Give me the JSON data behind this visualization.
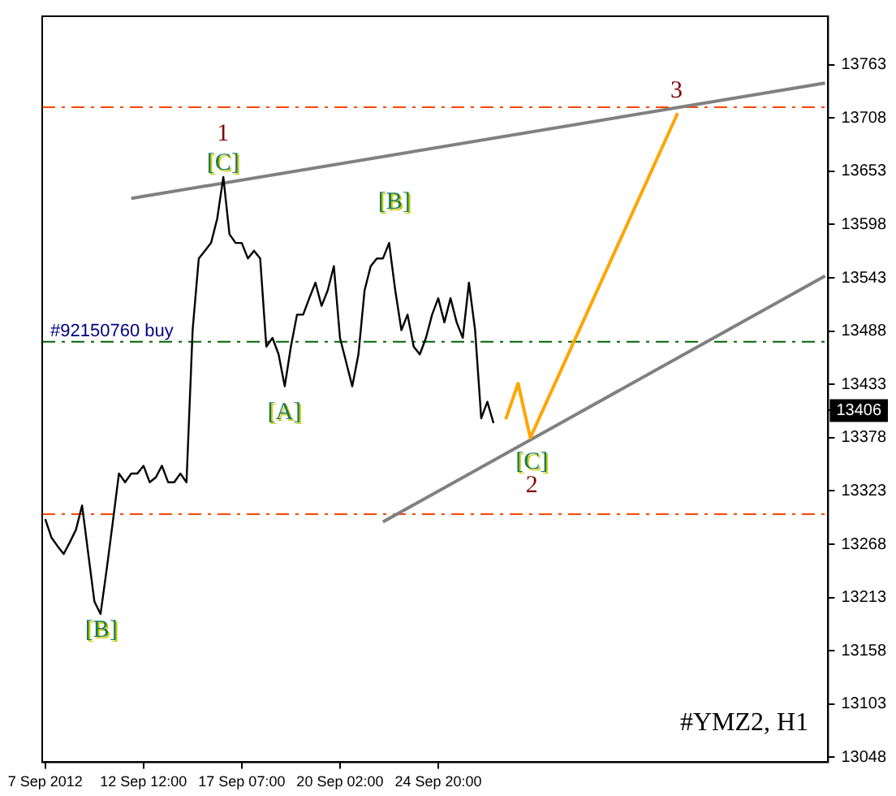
{
  "chart_data": {
    "type": "line",
    "categories": [
      "7 Sep 2012",
      null,
      null,
      null,
      null,
      null,
      null,
      null,
      null,
      null,
      null,
      null,
      null,
      null,
      null,
      null,
      "12 Sep 12:00",
      null,
      null,
      null,
      null,
      null,
      null,
      null,
      null,
      null,
      null,
      null,
      null,
      null,
      null,
      null,
      "17 Sep 07:00",
      null,
      null,
      null,
      null,
      null,
      null,
      null,
      null,
      null,
      null,
      null,
      null,
      null,
      null,
      null,
      "20 Sep 02:00",
      null,
      null,
      null,
      null,
      null,
      null,
      null,
      null,
      null,
      null,
      null,
      null,
      null,
      null,
      null,
      "24 Sep 20:00",
      null,
      null,
      null,
      null,
      null,
      null,
      null,
      null,
      null,
      null,
      null,
      null,
      null,
      null,
      null,
      null,
      null,
      null,
      null,
      null,
      null,
      null,
      null,
      null,
      null,
      null,
      null,
      null,
      null,
      null,
      null,
      null,
      null,
      null,
      null,
      null,
      null,
      null,
      null,
      null,
      null,
      null,
      null,
      null,
      null,
      null,
      null,
      null,
      null,
      null,
      null,
      null,
      null,
      null,
      null,
      null,
      null,
      null,
      null,
      null,
      null,
      null,
      null
    ],
    "ylim": [
      13043,
      13813
    ],
    "yticks": [
      13048,
      13103,
      13158,
      13213,
      13268,
      13323,
      13378,
      13433,
      13488,
      13543,
      13598,
      13653,
      13708,
      13763,
      13406
    ],
    "grid": false,
    "legend": false,
    "marker": "none",
    "series": [
      {
        "type": "line",
        "color": "#000000",
        "values": [
          13294,
          13275,
          13266,
          13258,
          13270,
          13283,
          13308,
          13258,
          13209,
          13196,
          13242,
          13291,
          13341,
          13332,
          13341,
          13341,
          13349,
          13332,
          13337,
          13349,
          13332,
          13332,
          13341,
          13332,
          13489,
          13563,
          13571,
          13579,
          13604,
          13647,
          13588,
          13579,
          13579,
          13563,
          13571,
          13563,
          13472,
          13481,
          13464,
          13431,
          13472,
          13505,
          13505,
          13522,
          13538,
          13514,
          13530,
          13555,
          13481,
          13456,
          13431,
          13464,
          13530,
          13555,
          13563,
          13563,
          13579,
          13530,
          13489,
          13505,
          13472,
          13464,
          13481,
          13505,
          13522,
          13497,
          13522,
          13497,
          13481,
          13538,
          13489,
          13398,
          13415,
          13393,
          null,
          null,
          null,
          null,
          null,
          null,
          null,
          null,
          null,
          null,
          null,
          null,
          null,
          null,
          null,
          null,
          null,
          null,
          null,
          null,
          null,
          null,
          null,
          null,
          null,
          null,
          null,
          null,
          null,
          null,
          null,
          null,
          null,
          null,
          null,
          null,
          null,
          null,
          null,
          null,
          null,
          null,
          null,
          null,
          null,
          null,
          null,
          null,
          null,
          null,
          null,
          null,
          null,
          null
        ]
      },
      {
        "type": "line",
        "color": "#ffa500",
        "values": [
          null,
          null,
          null,
          null,
          null,
          null,
          null,
          null,
          null,
          null,
          null,
          null,
          null,
          null,
          null,
          null,
          null,
          null,
          null,
          null,
          null,
          null,
          null,
          null,
          null,
          null,
          null,
          null,
          null,
          null,
          null,
          null,
          null,
          null,
          null,
          null,
          null,
          null,
          null,
          null,
          null,
          null,
          null,
          null,
          null,
          null,
          null,
          null,
          null,
          null,
          null,
          null,
          null,
          null,
          null,
          null,
          null,
          null,
          null,
          null,
          null,
          null,
          null,
          null,
          null,
          null,
          null,
          null,
          null,
          null,
          null,
          null,
          null,
          null,
          null,
          13397,
          null,
          13434,
          null,
          13378,
          null,
          null,
          null,
          null,
          null,
          null,
          null,
          null,
          null,
          null,
          null,
          null,
          null,
          null,
          null,
          null,
          null,
          null,
          null,
          null,
          null,
          null,
          null,
          13713,
          null,
          null,
          null,
          null,
          null,
          null,
          null,
          null,
          null,
          null,
          null,
          null,
          null,
          null,
          null,
          null,
          null,
          null,
          null,
          null,
          null,
          null,
          null,
          null
        ]
      },
      {
        "type": "line",
        "color": "#808080",
        "values": [
          null,
          null,
          null,
          null,
          null,
          null,
          null,
          null,
          null,
          null,
          null,
          null,
          null,
          null,
          13625,
          null,
          null,
          null,
          null,
          null,
          null,
          null,
          null,
          null,
          null,
          null,
          null,
          null,
          null,
          null,
          null,
          null,
          null,
          null,
          null,
          null,
          null,
          null,
          null,
          null,
          null,
          null,
          null,
          null,
          null,
          null,
          null,
          null,
          null,
          null,
          null,
          null,
          null,
          null,
          null,
          null,
          null,
          null,
          null,
          null,
          null,
          null,
          null,
          null,
          null,
          null,
          null,
          null,
          null,
          null,
          null,
          null,
          null,
          null,
          null,
          null,
          null,
          null,
          null,
          null,
          null,
          null,
          null,
          null,
          null,
          null,
          null,
          null,
          null,
          null,
          null,
          null,
          null,
          null,
          null,
          null,
          null,
          null,
          null,
          null,
          null,
          null,
          null,
          null,
          null,
          null,
          null,
          null,
          null,
          null,
          null,
          null,
          null,
          null,
          null,
          null,
          null,
          null,
          null,
          null,
          null,
          null,
          null,
          null,
          null,
          null,
          null,
          13744
        ]
      },
      {
        "type": "line",
        "color": "#808080",
        "values": [
          null,
          null,
          null,
          null,
          null,
          null,
          null,
          null,
          null,
          null,
          null,
          null,
          null,
          null,
          null,
          null,
          null,
          null,
          null,
          null,
          null,
          null,
          null,
          null,
          null,
          null,
          null,
          null,
          null,
          null,
          null,
          null,
          null,
          null,
          null,
          null,
          null,
          null,
          null,
          null,
          null,
          null,
          null,
          null,
          null,
          null,
          null,
          null,
          null,
          null,
          null,
          null,
          null,
          null,
          null,
          13291,
          null,
          null,
          null,
          null,
          null,
          null,
          null,
          null,
          null,
          null,
          null,
          null,
          null,
          null,
          null,
          null,
          null,
          null,
          null,
          null,
          null,
          null,
          null,
          null,
          null,
          null,
          null,
          null,
          null,
          null,
          null,
          null,
          null,
          null,
          null,
          null,
          null,
          null,
          null,
          null,
          null,
          null,
          null,
          null,
          null,
          null,
          null,
          null,
          null,
          null,
          null,
          null,
          null,
          null,
          null,
          null,
          null,
          null,
          null,
          null,
          null,
          null,
          null,
          null,
          null,
          null,
          null,
          null,
          null,
          null,
          null,
          13545
        ]
      }
    ],
    "ref_lines": [
      {
        "axis": "y",
        "value": 13719,
        "color": "#ff4500",
        "line_style": "dashed"
      },
      {
        "axis": "y",
        "value": 13299,
        "color": "#ff4500",
        "line_style": "dashed"
      },
      {
        "axis": "y",
        "value": 13477,
        "label": "#92150760 buy",
        "color": "#006400",
        "line_style": "dashed"
      }
    ],
    "annotations": [
      "1",
      "[C]",
      "[B]",
      "[A]",
      "[B]",
      "[C]",
      "2",
      "3",
      "#YMZ2, H1"
    ]
  }
}
